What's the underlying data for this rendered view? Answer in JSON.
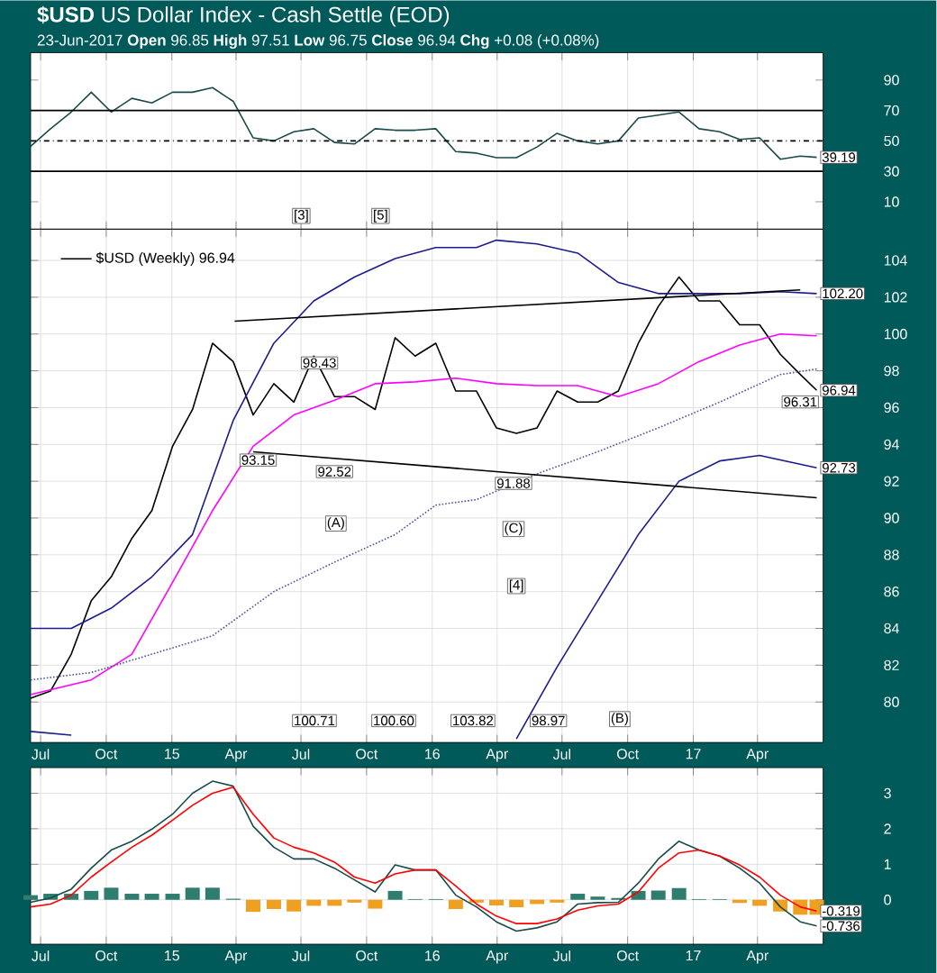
{
  "chart_data": [
    {
      "type": "line",
      "title": "**$USD** US Dollar Index - Cash Settle (EOD)",
      "subtitle": "23-Jun-2017        **Open** 96.85  **High** 97.51  **Low** 96.75  **Close** 96.94  **Chg** +0.08 (+0.08%)",
      "x": [
        "2014-06-17",
        "2014-07-15",
        "2014-08-13",
        "2014-09-10",
        "2014-10-08",
        "2014-11-06",
        "2014-12-04",
        "2015-01-02",
        "2015-01-30",
        "2015-02-27",
        "2015-03-28",
        "2015-04-25",
        "2015-05-24",
        "2015-06-21",
        "2015-07-19",
        "2015-08-17",
        "2015-09-14",
        "2015-10-13",
        "2015-11-10",
        "2015-12-08",
        "2016-01-06",
        "2016-02-03",
        "2016-03-03",
        "2016-03-31",
        "2016-04-28",
        "2016-05-27",
        "2016-06-24",
        "2016-07-23",
        "2016-08-20",
        "2016-09-18",
        "2016-10-16",
        "2016-11-13",
        "2016-12-12",
        "2017-01-09",
        "2017-02-07",
        "2017-03-07",
        "2017-04-04",
        "2017-05-03",
        "2017-05-31",
        "2017-06-23"
      ],
      "xlim": [
        "2014-06-17",
        "2017-07-02"
      ],
      "xticks": [
        {
          "value": "2014-07-01",
          "label": null
        },
        {
          "value": "2014-10-01",
          "label": null
        },
        {
          "value": "2015-01-01",
          "label": null
        },
        {
          "value": "2015-04-01",
          "label": null
        },
        {
          "value": "2015-07-01",
          "label": null
        },
        {
          "value": "2015-10-01",
          "label": null
        },
        {
          "value": "2016-01-01",
          "label": null
        },
        {
          "value": "2016-04-01",
          "label": null
        },
        {
          "value": "2016-07-01",
          "label": null
        },
        {
          "value": "2016-10-01",
          "label": null
        },
        {
          "value": "2017-01-01",
          "label": null
        },
        {
          "value": "2017-04-01",
          "label": null
        }
      ],
      "ylim": [
        -8,
        108
      ],
      "yticks": [
        10,
        30,
        50,
        70,
        90
      ],
      "grid": "x",
      "tick_labels": "y",
      "ref_lines": [
        {
          "axis": "y",
          "value": 70,
          "line_style": "solid",
          "color": "#000000"
        },
        {
          "axis": "y",
          "value": 50,
          "line_style": "dashed",
          "color": "#000000"
        },
        {
          "axis": "y",
          "value": 30,
          "line_style": "solid",
          "color": "#000000"
        }
      ],
      "annotations": [
        {
          "text": "39.19",
          "x": "2017-06-23",
          "y": 39.19
        },
        "[3]",
        "[5]"
      ],
      "series": [
        {
          "color": "#1a4a4a",
          "values": [
            46.5,
            58,
            69,
            82,
            69,
            78,
            75,
            82,
            82,
            85,
            76,
            52,
            50,
            56,
            58,
            49,
            48,
            58,
            57,
            57,
            58,
            43,
            42,
            39,
            39,
            46,
            55,
            50,
            48,
            50,
            65,
            67,
            69,
            58,
            56,
            51,
            52,
            38,
            40,
            39.19
          ]
        }
      ]
    },
    {
      "type": "line",
      "x": [
        "2014-06-17",
        "2014-07-15",
        "2014-08-13",
        "2014-09-10",
        "2014-10-08",
        "2014-11-06",
        "2014-12-04",
        "2015-01-02",
        "2015-01-30",
        "2015-02-27",
        "2015-03-28",
        "2015-04-25",
        "2015-05-24",
        "2015-06-21",
        "2015-07-19",
        "2015-08-17",
        "2015-09-14",
        "2015-10-13",
        "2015-11-10",
        "2015-12-08",
        "2016-01-06",
        "2016-02-03",
        "2016-03-03",
        "2016-03-31",
        "2016-04-28",
        "2016-05-27",
        "2016-06-24",
        "2016-07-23",
        "2016-08-20",
        "2016-09-18",
        "2016-10-16",
        "2016-11-13",
        "2016-12-12",
        "2017-01-09",
        "2017-02-07",
        "2017-03-07",
        "2017-04-04",
        "2017-05-03",
        "2017-05-31",
        "2017-06-23"
      ],
      "xlim": [
        "2014-06-17",
        "2017-07-02"
      ],
      "xticks": [
        {
          "value": "2014-07-01",
          "label": "Jul"
        },
        {
          "value": "2014-10-01",
          "label": "Oct"
        },
        {
          "value": "2015-01-01",
          "label": "15"
        },
        {
          "value": "2015-04-01",
          "label": "Apr"
        },
        {
          "value": "2015-07-01",
          "label": "Jul"
        },
        {
          "value": "2015-10-01",
          "label": "Oct"
        },
        {
          "value": "2016-01-01",
          "label": "16"
        },
        {
          "value": "2016-04-01",
          "label": "Apr"
        },
        {
          "value": "2016-07-01",
          "label": "Jul"
        },
        {
          "value": "2016-10-01",
          "label": "Oct"
        },
        {
          "value": "2017-01-01",
          "label": "17"
        },
        {
          "value": "2017-04-01",
          "label": "Apr"
        }
      ],
      "ylim": [
        77.8,
        105.7
      ],
      "yticks": [
        80,
        82,
        84,
        86,
        88,
        90,
        92,
        94,
        96,
        98,
        100,
        102,
        104
      ],
      "grid": true,
      "legend": "top left",
      "annotations": [
        "100.71",
        "100.60",
        "103.82",
        "98.97",
        "(B)",
        {
          "text": "98.43",
          "x": "2015-07-27",
          "y": 98.43
        },
        {
          "text": "93.15",
          "x": "2015-05-02",
          "y": 93.15
        },
        {
          "text": "92.52",
          "x": "2015-08-17",
          "y": 92.52
        },
        {
          "text": "91.88",
          "x": "2016-04-24",
          "y": 91.88
        },
        {
          "text": "96.31",
          "x": "2017-05-31",
          "y": 96.31
        },
        {
          "text": "102.20",
          "x": "2017-06-23",
          "y": 102.2
        },
        {
          "text": "96.94",
          "x": "2017-06-23",
          "y": 96.94
        },
        {
          "text": "92.73",
          "x": "2017-06-23",
          "y": 92.73
        },
        {
          "text": "(A)",
          "x": "2015-08-19",
          "y": 89.7
        },
        {
          "text": "(C)",
          "x": "2016-04-24",
          "y": 89.4
        },
        {
          "text": "[4]",
          "x": "2016-04-28",
          "y": 86.3
        }
      ],
      "series": [
        {
          "name": "$USD (Weekly) 96.94",
          "color": "#000000",
          "values": [
            80.2,
            80.6,
            82.6,
            85.5,
            86.8,
            88.9,
            90.4,
            93.9,
            95.9,
            99.5,
            98.5,
            95.6,
            97.3,
            96.3,
            98.8,
            96.6,
            96.6,
            95.9,
            99.8,
            98.8,
            99.5,
            96.9,
            96.9,
            94.9,
            94.6,
            94.9,
            96.9,
            96.3,
            96.3,
            96.9,
            99.5,
            101.5,
            103.1,
            101.8,
            101.8,
            100.5,
            100.5,
            98.9,
            97.8,
            96.94
          ]
        },
        {
          "color": "#ff00ff",
          "x": [
            "2014-06-17",
            "2014-09-10",
            "2014-11-06",
            "2015-01-02",
            "2015-02-27",
            "2015-04-25",
            "2015-06-21",
            "2015-08-17",
            "2015-10-13",
            "2015-12-08",
            "2016-02-03",
            "2016-03-31",
            "2016-05-27",
            "2016-07-23",
            "2016-09-18",
            "2016-11-13",
            "2017-01-09",
            "2017-03-07",
            "2017-05-03",
            "2017-06-23"
          ],
          "values": [
            80.4,
            81.2,
            82.6,
            86.5,
            90.4,
            93.9,
            95.6,
            96.4,
            97.3,
            97.4,
            97.6,
            97.3,
            97.2,
            97.2,
            96.6,
            97.3,
            98.5,
            99.4,
            100.0,
            99.9
          ]
        },
        {
          "color": "#5050a0",
          "line_style": "dotted",
          "x": [
            "2014-06-17",
            "2014-09-10",
            "2014-12-04",
            "2015-02-27",
            "2015-05-24",
            "2015-08-17",
            "2015-11-10",
            "2016-01-06",
            "2016-03-03",
            "2016-05-27",
            "2016-08-20",
            "2016-11-13",
            "2017-02-07",
            "2017-05-03",
            "2017-06-23"
          ],
          "values": [
            81.2,
            81.6,
            82.6,
            83.6,
            86.0,
            87.6,
            89.1,
            90.7,
            91.0,
            92.4,
            93.6,
            94.9,
            96.3,
            97.8,
            98.1
          ]
        },
        {
          "color": "#1c1c8c",
          "x": [
            "2014-06-17",
            "2014-08-13",
            "2014-10-08",
            "2014-12-04",
            "2015-01-30",
            "2015-03-28",
            "2015-05-24",
            "2015-07-19",
            "2015-09-14",
            "2015-11-10",
            "2016-01-06",
            "2016-03-03",
            "2016-03-31",
            "2016-05-27",
            "2016-07-23",
            "2016-09-18",
            "2016-11-13",
            "2017-01-09",
            "2017-03-07",
            "2017-05-03",
            "2017-06-23"
          ],
          "values": [
            84.0,
            84.0,
            85.1,
            86.8,
            89.1,
            95.3,
            99.5,
            101.8,
            103.1,
            104.1,
            104.7,
            104.7,
            105.1,
            104.9,
            104.4,
            102.8,
            102.2,
            102.2,
            102.2,
            102.3,
            102.2
          ]
        },
        {
          "color": "#1c1c8c",
          "x": [
            "2014-06-17",
            "2014-08-13",
            "2014-09-10",
            "2016-03-31",
            "2016-04-28",
            "2016-06-24",
            "2016-08-20",
            "2016-10-16",
            "2016-12-12",
            "2017-02-07",
            "2017-04-04",
            "2017-06-23"
          ],
          "values": [
            78.4,
            78.2,
            null,
            null,
            78.0,
            81.9,
            85.5,
            89.1,
            92.0,
            93.1,
            93.4,
            92.73
          ]
        },
        {
          "color": "#000000",
          "x": [
            "2015-03-30",
            "2017-05-31"
          ],
          "values": [
            100.7,
            102.4
          ]
        },
        {
          "color": "#000000",
          "x": [
            "2015-04-25",
            "2017-06-23"
          ],
          "values": [
            93.6,
            91.1
          ]
        }
      ]
    },
    {
      "type": "line",
      "x": [
        "2014-06-17",
        "2014-07-15",
        "2014-08-13",
        "2014-09-10",
        "2014-10-08",
        "2014-11-06",
        "2014-12-04",
        "2015-01-02",
        "2015-01-30",
        "2015-02-27",
        "2015-03-28",
        "2015-04-25",
        "2015-05-24",
        "2015-06-21",
        "2015-07-19",
        "2015-08-17",
        "2015-09-14",
        "2015-10-13",
        "2015-11-10",
        "2015-12-08",
        "2016-01-06",
        "2016-02-03",
        "2016-03-03",
        "2016-03-31",
        "2016-04-28",
        "2016-05-27",
        "2016-06-24",
        "2016-07-23",
        "2016-08-20",
        "2016-09-18",
        "2016-10-16",
        "2016-11-13",
        "2016-12-12",
        "2017-01-09",
        "2017-02-07",
        "2017-03-07",
        "2017-04-04",
        "2017-05-03",
        "2017-05-31",
        "2017-06-23"
      ],
      "xlim": [
        "2014-06-17",
        "2017-07-02"
      ],
      "xticks": [
        {
          "value": "2014-07-01",
          "label": "Jul"
        },
        {
          "value": "2014-10-01",
          "label": "Oct"
        },
        {
          "value": "2015-01-01",
          "label": "15"
        },
        {
          "value": "2015-04-01",
          "label": "Apr"
        },
        {
          "value": "2015-07-01",
          "label": "Jul"
        },
        {
          "value": "2015-10-01",
          "label": "Oct"
        },
        {
          "value": "2016-01-01",
          "label": "16"
        },
        {
          "value": "2016-04-01",
          "label": "Apr"
        },
        {
          "value": "2016-07-01",
          "label": "Jul"
        },
        {
          "value": "2016-10-01",
          "label": "Oct"
        },
        {
          "value": "2017-01-01",
          "label": "17"
        },
        {
          "value": "2017-04-01",
          "label": "Apr"
        }
      ],
      "ylim": [
        -1.25,
        3.72
      ],
      "yticks": [
        0,
        1,
        2,
        3
      ],
      "grid": true,
      "annotations": [
        {
          "text": "-0.319",
          "x": "2017-06-23",
          "y": -0.319
        },
        {
          "text": "-0.736",
          "x": "2017-06-23",
          "y": -0.736
        }
      ],
      "series": [
        {
          "type": "bar",
          "colors": [
            "#2e7d6e",
            "#2e7d6e",
            "#2e7d6e",
            "#2e7d6e",
            "#2e7d6e",
            "#2e7d6e",
            "#2e7d6e",
            "#2e7d6e",
            "#2e7d6e",
            "#2e7d6e",
            "#2e7d6e",
            "#f0a020",
            "#f0a020",
            "#f0a020",
            "#f0a020",
            "#f0a020",
            "#f0a020",
            "#f0a020",
            "#2e7d6e",
            "#2e7d6e",
            "#2e7d6e",
            "#f0a020",
            "#f0a020",
            "#f0a020",
            "#f0a020",
            "#f0a020",
            "#f0a020",
            "#2e7d6e",
            "#2e7d6e",
            "#2e7d6e",
            "#2e7d6e",
            "#2e7d6e",
            "#2e7d6e",
            "#2e7d6e",
            "#2e7d6e",
            "#f0a020",
            "#f0a020",
            "#f0a020",
            "#f0a020",
            "#f0a020"
          ],
          "values": [
            0.13,
            0.17,
            0.17,
            0.25,
            0.34,
            0.17,
            0.17,
            0.17,
            0.34,
            0.34,
            0.03,
            -0.34,
            -0.26,
            -0.33,
            -0.17,
            -0.17,
            -0.08,
            -0.25,
            0.25,
            0.02,
            0.02,
            -0.26,
            -0.08,
            -0.16,
            -0.21,
            -0.12,
            -0.08,
            0.17,
            0.09,
            0.05,
            0.25,
            0.26,
            0.33,
            0.02,
            0.02,
            -0.09,
            -0.17,
            -0.33,
            -0.42,
            -0.42
          ]
        },
        {
          "color": "#1a4a4a",
          "values": [
            -0.07,
            0.05,
            0.3,
            0.89,
            1.4,
            1.65,
            1.99,
            2.41,
            3.0,
            3.34,
            3.2,
            2.07,
            1.48,
            1.15,
            1.15,
            0.89,
            0.56,
            0.22,
            0.98,
            0.84,
            0.84,
            0.13,
            -0.2,
            -0.62,
            -0.88,
            -0.79,
            -0.62,
            -0.12,
            -0.08,
            -0.07,
            0.47,
            1.15,
            1.65,
            1.4,
            1.23,
            0.89,
            0.47,
            -0.2,
            -0.62,
            -0.736
          ]
        },
        {
          "color": "#ff0000",
          "values": [
            -0.2,
            -0.12,
            0.13,
            0.64,
            1.06,
            1.48,
            1.82,
            2.24,
            2.66,
            3.0,
            3.17,
            2.41,
            1.74,
            1.48,
            1.32,
            1.06,
            0.64,
            0.47,
            0.73,
            0.84,
            0.84,
            0.39,
            -0.12,
            -0.46,
            -0.67,
            -0.67,
            -0.54,
            -0.29,
            -0.17,
            -0.12,
            0.22,
            0.89,
            1.32,
            1.4,
            1.23,
            0.98,
            0.64,
            0.13,
            -0.2,
            -0.319
          ]
        }
      ]
    }
  ]
}
